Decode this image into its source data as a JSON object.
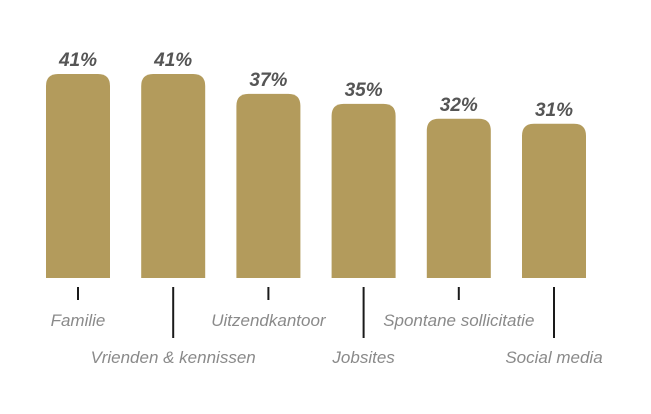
{
  "chart_data": {
    "type": "bar",
    "categories": [
      "Familie",
      "Vrienden & kennissen",
      "Uitzendkantoor",
      "Jobsites",
      "Spontane sollicitatie",
      "Social media"
    ],
    "values": [
      41,
      41,
      37,
      35,
      32,
      31
    ],
    "value_labels": [
      "41%",
      "41%",
      "37%",
      "35%",
      "32%",
      "31%"
    ],
    "unit": "%",
    "ylim": [
      0,
      41
    ],
    "grid": false,
    "legend": "none",
    "bar_color": "#b39b5c",
    "label_color": "#8a8a8a",
    "value_label_color": "#555555"
  }
}
